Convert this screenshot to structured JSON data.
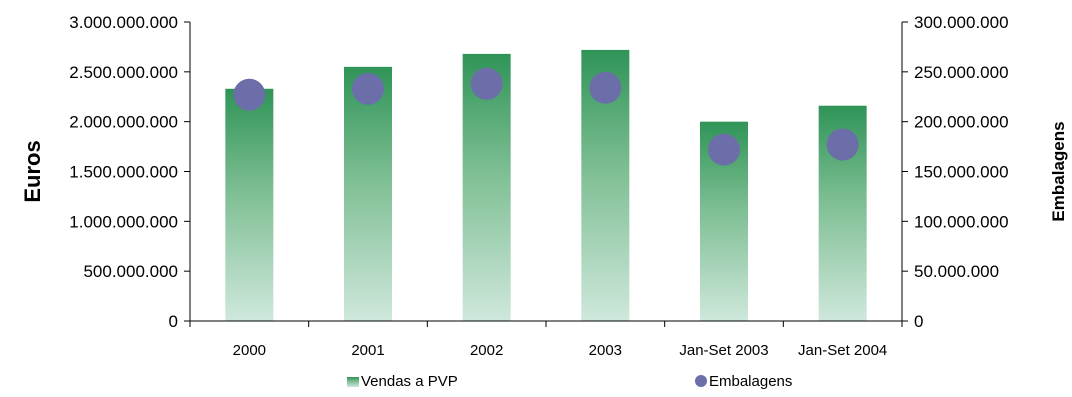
{
  "chart_data": {
    "type": "bar",
    "categories": [
      "2000",
      "2001",
      "2002",
      "2003",
      "Jan-Set 2003",
      "Jan-Set 2004"
    ],
    "series": [
      {
        "name": "Vendas a PVP",
        "type": "bar",
        "axis": "left",
        "values": [
          2330000000,
          2550000000,
          2680000000,
          2720000000,
          2000000000,
          2160000000
        ],
        "color": "#3a9a5c"
      },
      {
        "name": "Embalagens",
        "type": "scatter",
        "axis": "right",
        "values": [
          227000000,
          233000000,
          238000000,
          234000000,
          172000000,
          177000000
        ],
        "color": "#6b6ea8"
      }
    ],
    "y_left": {
      "label": "Euros",
      "lim": [
        0,
        3000000000
      ],
      "ticks": [
        0,
        500000000,
        1000000000,
        1500000000,
        2000000000,
        2500000000,
        3000000000
      ],
      "tick_labels": [
        "0",
        "500.000.000",
        "1.000.000.000",
        "1.500.000.000",
        "2.000.000.000",
        "2.500.000.000",
        "3.000.000.000"
      ]
    },
    "y_right": {
      "label": "Embalagens",
      "lim": [
        0,
        300000000
      ],
      "ticks": [
        0,
        50000000,
        100000000,
        150000000,
        200000000,
        250000000,
        300000000
      ],
      "tick_labels": [
        "0",
        "50.000.000",
        "100.000.000",
        "150.000.000",
        "200.000.000",
        "250.000.000",
        "300.000.000"
      ]
    },
    "grid": false,
    "legend_position": "bottom"
  }
}
